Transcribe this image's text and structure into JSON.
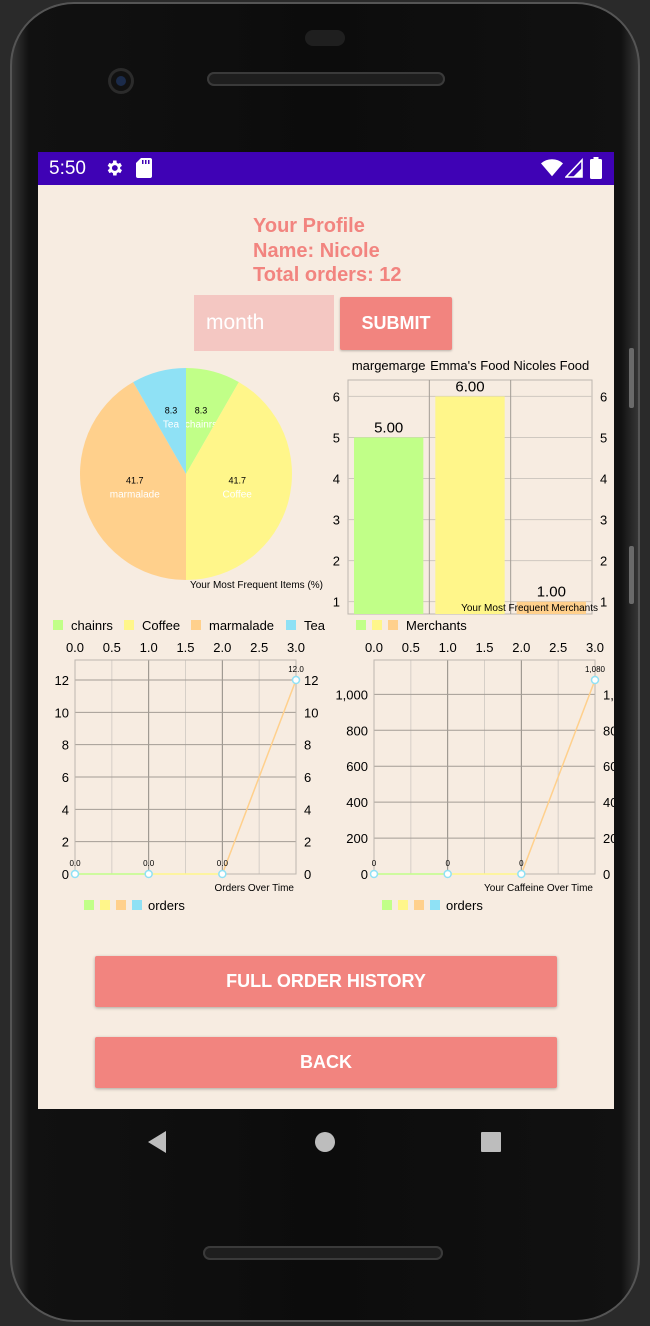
{
  "status_bar": {
    "time": "5:50",
    "icons": [
      "gear-icon",
      "sd-card-icon",
      "wifi-icon",
      "signal-icon",
      "battery-icon"
    ]
  },
  "profile": {
    "title": "Your Profile",
    "name_line": "Name: Nicole",
    "orders_line": "Total orders: 12"
  },
  "month_input": {
    "placeholder": "month",
    "value": ""
  },
  "submit_label": "SUBMIT",
  "full_history_label": "FULL ORDER HISTORY",
  "back_label": "BACK",
  "colors": {
    "accent": "#F2847F",
    "background": "#F7ECE1",
    "status_bar": "#3F02B5",
    "green": "#C1FF88",
    "yellow": "#FFF68A",
    "orange": "#FFD08C",
    "blue": "#8FE1F5"
  },
  "chart_data": [
    {
      "type": "pie",
      "description": "Your Most Frequent Items (%)",
      "slices": [
        {
          "label": "chainrs",
          "value": 8.3,
          "value_label": "8.3",
          "color": "#C1FF88"
        },
        {
          "label": "Coffee",
          "value": 41.7,
          "value_label": "41.7",
          "color": "#FFF68A"
        },
        {
          "label": "marmalade",
          "value": 41.7,
          "value_label": "41.7",
          "color": "#FFD08C"
        },
        {
          "label": "Tea",
          "value": 8.3,
          "value_label": "8.3",
          "color": "#8FE1F5"
        }
      ],
      "legend": [
        "chainrs",
        "Coffee",
        "marmalade",
        "Tea"
      ],
      "legend_placement": "bottom-left"
    },
    {
      "type": "bar",
      "description": "Your Most Frequent Merchants",
      "categories": [
        "margemarge",
        "Emma's Food",
        "Nicoles Food"
      ],
      "values": [
        5.0,
        6.0,
        1.0
      ],
      "value_labels": [
        "5.00",
        "6.00",
        "1.00"
      ],
      "colors": [
        "#C1FF88",
        "#FFF68A",
        "#FFD08C"
      ],
      "ylim": [
        1,
        6
      ],
      "yticks": [
        "1",
        "2",
        "3",
        "4",
        "5",
        "6"
      ],
      "legend": [
        "Merchants"
      ],
      "legend_placement": "bottom-left",
      "grid": true
    },
    {
      "type": "line",
      "description": "Orders Over Time",
      "x": [
        0,
        1,
        2,
        3
      ],
      "values": [
        0,
        0,
        0,
        12
      ],
      "value_labels": [
        "0.0",
        "0.0",
        "0.0",
        "12.0"
      ],
      "xticks": [
        "0.0",
        "0.5",
        "1.0",
        "1.5",
        "2.0",
        "2.5",
        "3.0"
      ],
      "yticks": [
        "0",
        "2",
        "4",
        "6",
        "8",
        "10",
        "12"
      ],
      "xlim": [
        0,
        3
      ],
      "ylim": [
        0,
        12
      ],
      "legend": [
        "orders"
      ],
      "legend_placement": "bottom-left",
      "grid": true
    },
    {
      "type": "line",
      "description": "Your Caffeine Over Time",
      "x": [
        0,
        1,
        2,
        3
      ],
      "values": [
        0,
        0,
        0,
        1080
      ],
      "value_labels": [
        "0",
        "0",
        "0",
        "1,080"
      ],
      "xticks": [
        "0.0",
        "0.5",
        "1.0",
        "1.5",
        "2.0",
        "2.5",
        "3.0"
      ],
      "yticks": [
        "0",
        "200",
        "400",
        "600",
        "800",
        "1,000"
      ],
      "xlim": [
        0,
        3
      ],
      "ylim": [
        0,
        1080
      ],
      "legend": [
        "orders"
      ],
      "legend_placement": "bottom-left",
      "grid": true
    }
  ]
}
